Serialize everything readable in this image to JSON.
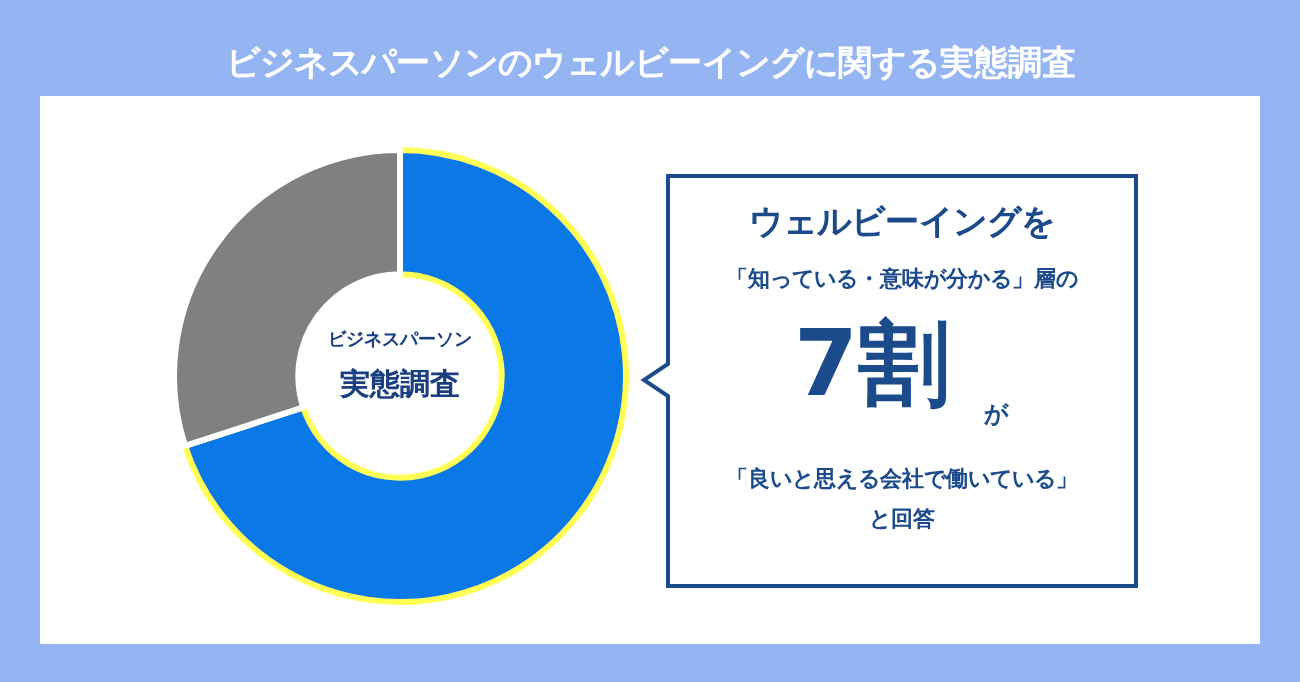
{
  "chart_data": {
    "type": "donut",
    "title": "ビジネスパーソンのウェルビーイングに関する実態調査",
    "categories": [
      null,
      null
    ],
    "values": [
      70,
      30
    ],
    "colors": [
      "#0a78e6",
      "#808080"
    ],
    "legend": false,
    "annotations": [
      "ビジネスパーソン",
      "実態調査",
      "ウェルビーイングを",
      "「知っている・意味が分かる」層の",
      "7割",
      "が",
      "「良いと思える会社で働いている」",
      "と回答"
    ]
  }
}
